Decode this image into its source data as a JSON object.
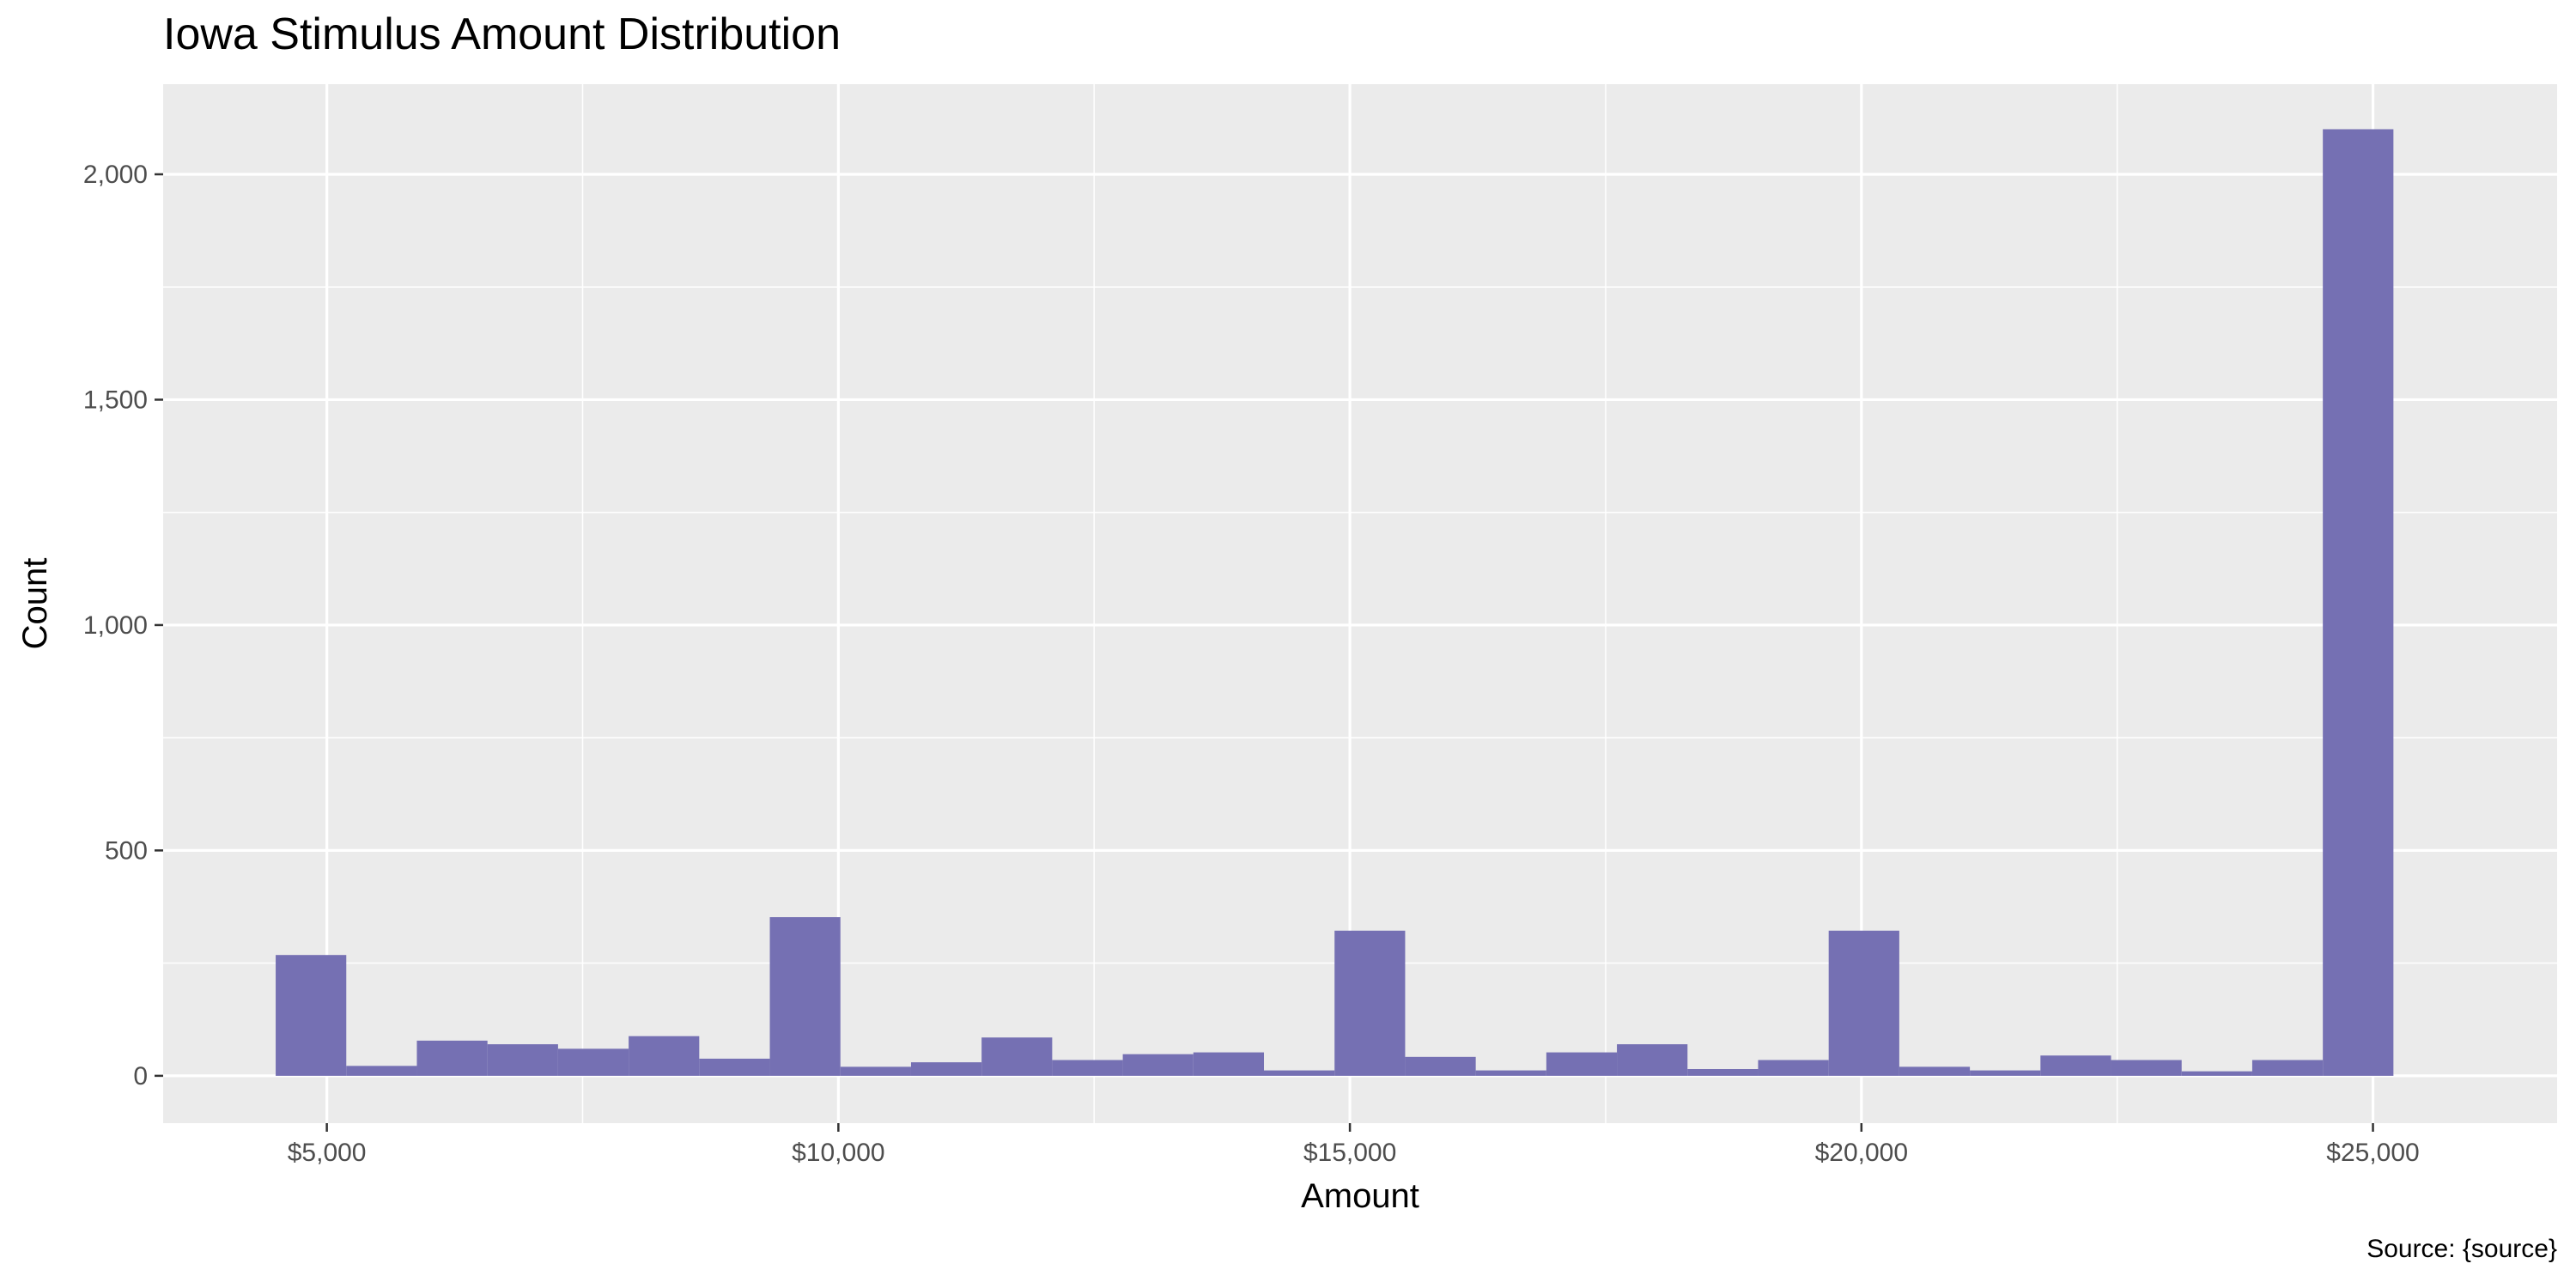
{
  "chart_data": {
    "type": "bar",
    "title": "Iowa Stimulus Amount Distribution",
    "xlabel": "Amount",
    "ylabel": "Count",
    "caption": "Source: {source}",
    "bar_color": "#7570b3",
    "panel_background": "#ebebeb",
    "grid_color": "#ffffff",
    "grid": true,
    "xlim": [
      3400,
      26800
    ],
    "ylim": [
      -105,
      2200
    ],
    "x_ticks": [
      {
        "value": 5000,
        "label": "$5,000"
      },
      {
        "value": 10000,
        "label": "$10,000"
      },
      {
        "value": 15000,
        "label": "$15,000"
      },
      {
        "value": 20000,
        "label": "$20,000"
      },
      {
        "value": 25000,
        "label": "$25,000"
      }
    ],
    "y_ticks": [
      {
        "value": 0,
        "label": "0"
      },
      {
        "value": 500,
        "label": "500"
      },
      {
        "value": 1000,
        "label": "1,000"
      },
      {
        "value": 1500,
        "label": "1,500"
      },
      {
        "value": 2000,
        "label": "2,000"
      }
    ],
    "bin_width": 690,
    "bin_start": 4500,
    "values": [
      268,
      22,
      78,
      70,
      60,
      88,
      38,
      352,
      20,
      30,
      85,
      35,
      48,
      52,
      12,
      322,
      42,
      12,
      52,
      70,
      15,
      35,
      322,
      20,
      12,
      45,
      35,
      10,
      35,
      2100
    ]
  }
}
